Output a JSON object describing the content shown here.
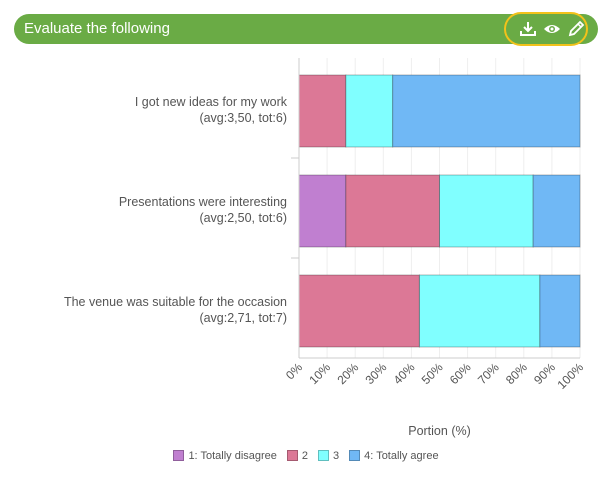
{
  "header": {
    "title": "Evaluate the following",
    "accent": "#6aab45",
    "tools": [
      {
        "name": "download-icon"
      },
      {
        "name": "eye-icon"
      },
      {
        "name": "pencil-icon"
      }
    ]
  },
  "chart_data": {
    "type": "bar",
    "orientation": "horizontal",
    "stacked": true,
    "categories": [
      [
        "I got new ideas for my work",
        "(avg:3,50, tot:6)"
      ],
      [
        "Presentations were interesting",
        "(avg:2,50, tot:6)"
      ],
      [
        "The venue was suitable for the occasion",
        "(avg:2,71, tot:7)"
      ]
    ],
    "series": [
      {
        "name": "1: Totally disagree",
        "color": "#c07fd0",
        "values": [
          0,
          16.67,
          0
        ]
      },
      {
        "name": "2",
        "color": "#dc7896",
        "values": [
          16.67,
          33.33,
          42.86
        ]
      },
      {
        "name": "3",
        "color": "#80ffff",
        "values": [
          16.67,
          33.33,
          42.86
        ]
      },
      {
        "name": "4: Totally agree",
        "color": "#70b8f5",
        "values": [
          66.67,
          16.67,
          14.29
        ]
      }
    ],
    "xlim": [
      0,
      100
    ],
    "xticks": [
      "0%",
      "10%",
      "20%",
      "30%",
      "40%",
      "50%",
      "60%",
      "70%",
      "80%",
      "90%",
      "100%"
    ],
    "xlabel": "Portion (%)",
    "legend_position": "bottom"
  }
}
